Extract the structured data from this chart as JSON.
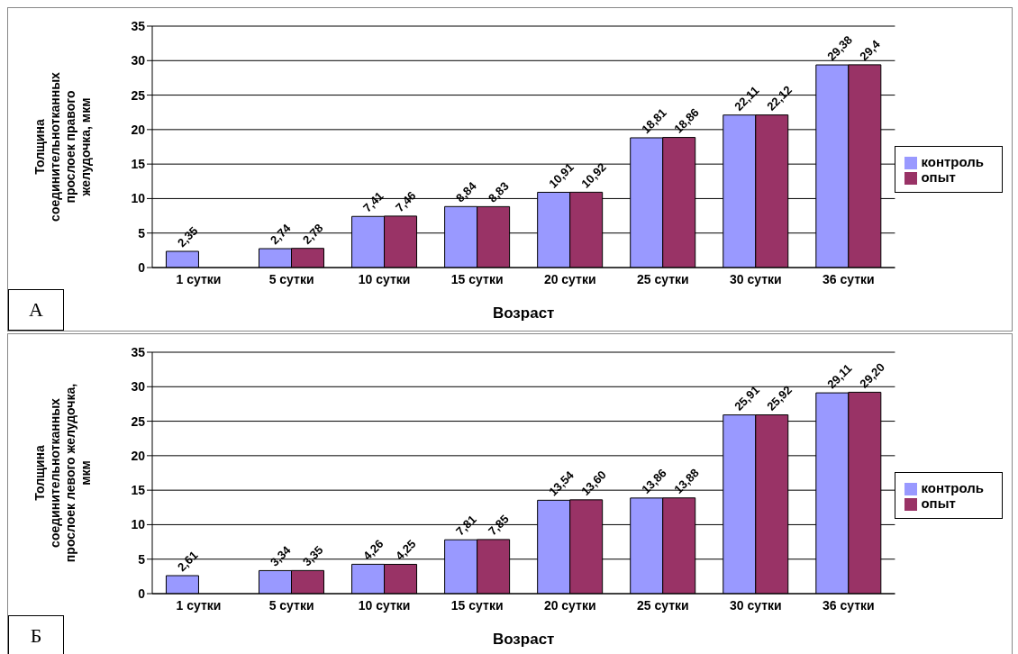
{
  "chart_data": [
    {
      "type": "bar",
      "xlabel": "Возраст",
      "ylabel": "Толщина соединительнотканных прослоек правого желудочка, мкм",
      "categories": [
        "1 сутки",
        "5 сутки",
        "10 сутки",
        "15 сутки",
        "20 сутки",
        "25 сутки",
        "30 сутки",
        "36 сутки"
      ],
      "series": [
        {
          "name": "контроль",
          "color": "#9999ff",
          "values": [
            2.35,
            2.74,
            7.41,
            8.84,
            10.91,
            18.81,
            22.11,
            29.38
          ],
          "value_labels": [
            "2,35",
            "2,74",
            "7,41",
            "8,84",
            "10,91",
            "18,81",
            "22,11",
            "29,38"
          ]
        },
        {
          "name": "опыт",
          "color": "#993366",
          "values": [
            null,
            2.78,
            7.46,
            8.83,
            10.92,
            18.86,
            22.12,
            29.4
          ],
          "value_labels": [
            null,
            "2,78",
            "7,46",
            "8,83",
            "10,92",
            "18,86",
            "22,12",
            "29,4"
          ]
        }
      ],
      "ylim": [
        0,
        35
      ],
      "yticks": [
        0,
        5,
        10,
        15,
        20,
        25,
        30,
        35
      ],
      "grid": "y",
      "legend": "right",
      "annotations": [
        "А"
      ]
    },
    {
      "type": "bar",
      "xlabel": "Возраст",
      "ylabel": "Толщина соединительнотканных прослоек левого желудочка, мкм",
      "categories": [
        "1 сутки",
        "5 сутки",
        "10 сутки",
        "15 сутки",
        "20 сутки",
        "25 сутки",
        "30 сутки",
        "36 сутки"
      ],
      "series": [
        {
          "name": "контроль",
          "color": "#9999ff",
          "values": [
            2.61,
            3.34,
            4.26,
            7.81,
            13.54,
            13.86,
            25.91,
            29.11
          ],
          "value_labels": [
            "2,61",
            "3,34",
            "4,26",
            "7,81",
            "13,54",
            "13,86",
            "25,91",
            "29,11"
          ]
        },
        {
          "name": "опыт",
          "color": "#993366",
          "values": [
            null,
            3.35,
            4.25,
            7.85,
            13.6,
            13.88,
            25.92,
            29.2
          ],
          "value_labels": [
            null,
            "3,35",
            "4,25",
            "7,85",
            "13,60",
            "13,88",
            "25,92",
            "29,20"
          ]
        }
      ],
      "ylim": [
        0,
        35
      ],
      "yticks": [
        0,
        5,
        10,
        15,
        20,
        25,
        30,
        35
      ],
      "grid": "y",
      "legend": "right",
      "annotations": [
        "Б"
      ]
    }
  ]
}
